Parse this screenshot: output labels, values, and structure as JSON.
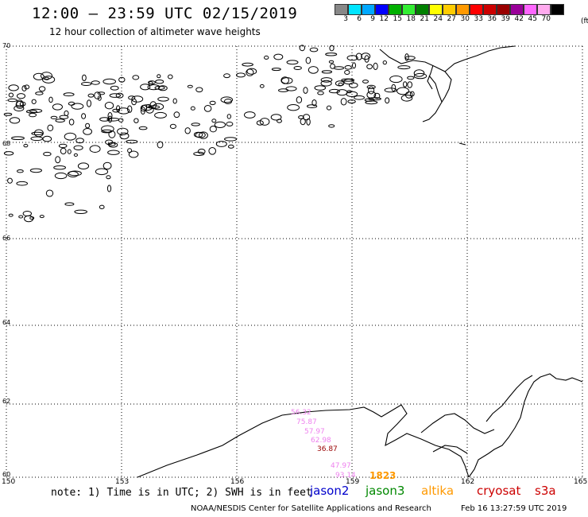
{
  "title": "12:00 – 23:59 UTC 02/15/2019",
  "subtitle": "12 hour collection of altimeter wave heights",
  "legend": {
    "colors": [
      "#888888",
      "#00e5ff",
      "#00a8ff",
      "#0000ff",
      "#00b000",
      "#33ee33",
      "#008000",
      "#ffff00",
      "#ffcc00",
      "#ff9900",
      "#ff0000",
      "#cc0000",
      "#990000",
      "#990099",
      "#ff66ff",
      "#ffaaee",
      "#000000"
    ],
    "values": [
      "3",
      "6",
      "9",
      "12",
      "15",
      "18",
      "21",
      "24",
      "27",
      "30",
      "33",
      "36",
      "39",
      "42",
      "45",
      "70"
    ],
    "unit": "(ft)"
  },
  "lat_labels": [
    "70",
    "68",
    "66",
    "64",
    "62",
    "60"
  ],
  "lon_labels": [
    "150",
    "153",
    "156",
    "159",
    "162",
    "165"
  ],
  "note": "note: 1) Time is in UTC; 2) SWH is in feet",
  "satellites": [
    {
      "name": "jason2",
      "color": "#0000cc"
    },
    {
      "name": "jason3",
      "color": "#008800"
    },
    {
      "name": "altika",
      "color": "#ff9900"
    },
    {
      "name": "cryosat",
      "color": "#cc0000"
    },
    {
      "name": "s3a",
      "color": "#cc0000"
    }
  ],
  "wave_heights": [
    {
      "label": "56.32",
      "color": "#ee82ee"
    },
    {
      "label": "75.87",
      "color": "#ee82ee"
    },
    {
      "label": "57.97",
      "color": "#ee82ee"
    },
    {
      "label": "62.98",
      "color": "#ee82ee"
    },
    {
      "label": "36.87",
      "color": "#990000"
    },
    {
      "label": "47.97",
      "color": "#ee82ee"
    },
    {
      "label": "93.14",
      "color": "#ee82ee"
    },
    {
      "label": "1823",
      "color": "#ff9900"
    }
  ],
  "footer": "NOAA/NESDIS Center for Satellite Applications and Research",
  "footer_time": "Feb 16 13:27:59 UTC 2019"
}
